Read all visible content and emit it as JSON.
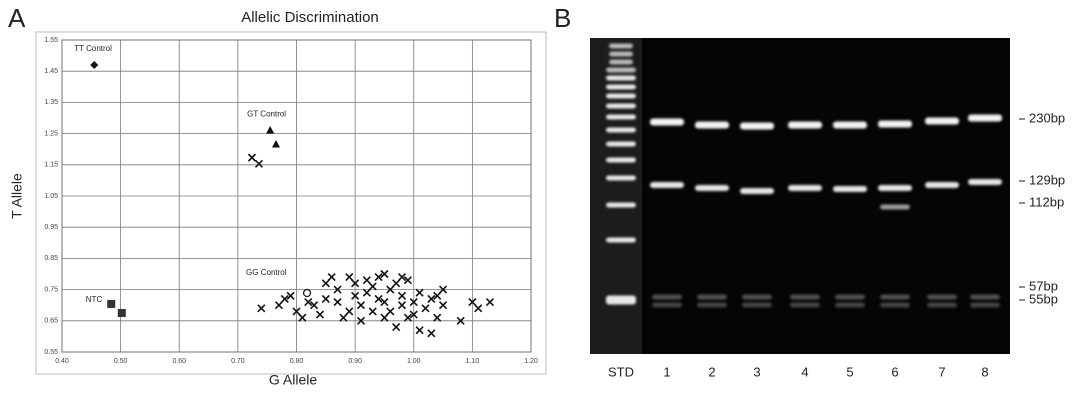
{
  "panel_labels": [
    "A",
    "B"
  ],
  "chart_data": {
    "type": "scatter",
    "title": "Allelic Discrimination",
    "x_label": "G Allele",
    "y_label": "T Allele",
    "xlim": [
      0.4,
      1.2
    ],
    "xticks": [
      {
        "value": 0.4,
        "label": "0.40"
      },
      {
        "value": 0.5,
        "label": "0.50"
      },
      {
        "value": 0.6,
        "label": "0.60"
      },
      {
        "value": 0.7,
        "label": "0.70"
      },
      {
        "value": 0.8,
        "label": "0.80"
      },
      {
        "value": 0.9,
        "label": "0.90"
      },
      {
        "value": 1.0,
        "label": "1.00"
      },
      {
        "value": 1.1,
        "label": "1.10"
      },
      {
        "value": 1.2,
        "label": "1.20"
      }
    ],
    "ylim": [
      0.55,
      1.55
    ],
    "yticks": [
      0.55,
      0.65,
      0.75,
      0.85,
      0.95,
      1.05,
      1.15,
      1.25,
      1.35,
      1.45,
      1.55
    ],
    "grid": true,
    "series": [
      {
        "name": "TT Control",
        "marker": "diamond",
        "color": "#111111",
        "x": [
          0.455
        ],
        "values": [
          1.47
        ]
      },
      {
        "name": "GT Control",
        "marker": "triangle",
        "color": "#111111",
        "x": [
          0.755,
          0.765
        ],
        "values": [
          1.26,
          1.215
        ]
      },
      {
        "name": "NTC",
        "marker": "square",
        "color": "#333333",
        "x": [
          0.484,
          0.502
        ],
        "values": [
          0.704,
          0.675
        ]
      },
      {
        "name": "GG Control",
        "marker": "circle",
        "color": "#111111",
        "x": [
          0.818
        ],
        "values": [
          0.739
        ]
      },
      {
        "marker": "cross",
        "color": "#111111",
        "x": [
          0.724,
          0.736,
          0.74,
          0.77,
          0.78,
          0.79,
          0.8,
          0.81,
          0.82,
          0.83,
          0.84,
          0.85,
          0.85,
          0.86,
          0.87,
          0.87,
          0.88,
          0.89,
          0.89,
          0.9,
          0.9,
          0.91,
          0.91,
          0.92,
          0.92,
          0.93,
          0.93,
          0.94,
          0.94,
          0.95,
          0.95,
          0.95,
          0.96,
          0.96,
          0.97,
          0.97,
          0.98,
          0.98,
          0.98,
          0.99,
          0.99,
          1.0,
          1.0,
          1.01,
          1.01,
          1.02,
          1.03,
          1.03,
          1.04,
          1.04,
          1.05,
          1.05,
          1.08,
          1.1,
          1.11,
          1.13
        ],
        "values": [
          1.173,
          1.153,
          0.69,
          0.7,
          0.72,
          0.73,
          0.68,
          0.66,
          0.71,
          0.7,
          0.67,
          0.72,
          0.77,
          0.79,
          0.75,
          0.71,
          0.66,
          0.68,
          0.79,
          0.73,
          0.77,
          0.7,
          0.65,
          0.74,
          0.78,
          0.76,
          0.68,
          0.72,
          0.79,
          0.8,
          0.66,
          0.71,
          0.75,
          0.68,
          0.63,
          0.77,
          0.79,
          0.7,
          0.73,
          0.66,
          0.78,
          0.71,
          0.67,
          0.62,
          0.74,
          0.69,
          0.72,
          0.61,
          0.66,
          0.73,
          0.75,
          0.7,
          0.65,
          0.71,
          0.69,
          0.71
        ]
      }
    ]
  },
  "gel": {
    "lanes": [
      "STD",
      "1",
      "2",
      "3",
      "4",
      "5",
      "6",
      "7",
      "8"
    ],
    "sizes": [
      "230bp",
      "129bp",
      "112bp",
      "57bp",
      "55bp"
    ]
  }
}
